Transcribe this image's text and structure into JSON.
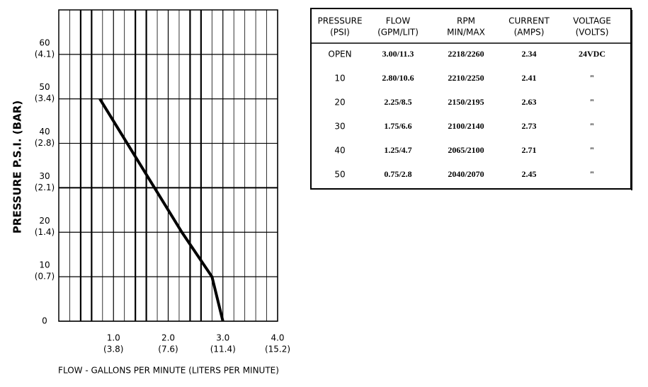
{
  "chart_data": {
    "type": "line",
    "y_label": "PRESSURE  P.S.I.   (BAR)",
    "x_label": "FLOW - GALLONS PER MINUTE  (LITERS PER MINUTE)",
    "series": [
      {
        "name": "Flow",
        "color": "#000000",
        "x": [
          0.75,
          1.25,
          1.75,
          2.25,
          2.8,
          3.0
        ],
        "values": [
          50,
          40,
          30,
          20,
          10,
          0
        ]
      }
    ],
    "xlim": [
      0,
      4
    ],
    "ylim": [
      0,
      70
    ],
    "xticks": [
      {
        "value": 1,
        "label": "1.0",
        "sublabel": "(3.8)"
      },
      {
        "value": 2,
        "label": "2.0",
        "sublabel": "(7.6)"
      },
      {
        "value": 3,
        "label": "3.0",
        "sublabel": "(11.4)"
      },
      {
        "value": 4,
        "label": "4.0",
        "sublabel": "(15.2)"
      }
    ],
    "yticks": [
      {
        "value": 0,
        "label": "0"
      },
      {
        "value": 10,
        "label": "10",
        "sublabel": "(0.7)"
      },
      {
        "value": 20,
        "label": "20",
        "sublabel": "(1.4)"
      },
      {
        "value": 30,
        "label": "30",
        "sublabel": "(2.1)"
      },
      {
        "value": 40,
        "label": "40",
        "sublabel": "(2.8)"
      },
      {
        "value": 50,
        "label": "50",
        "sublabel": "(3.4)"
      },
      {
        "value": 60,
        "label": "60",
        "sublabel": "(4.1)"
      }
    ],
    "x_minor_grid": [
      0.2,
      0.4,
      0.6,
      0.8,
      1.2,
      1.4,
      1.6,
      1.8,
      2.2,
      2.4,
      2.6,
      2.8,
      3.2,
      3.4,
      3.6,
      3.8
    ],
    "x_heavy_grid": [
      0.4,
      0.6,
      1.4,
      1.6,
      2.4,
      2.6
    ],
    "grid": true
  },
  "table": {
    "header": [
      [
        "PRESSURE",
        "(PSI)"
      ],
      [
        "FLOW",
        "(GPM/LIT)"
      ],
      [
        "RPM",
        "MIN/MAX"
      ],
      [
        "CURRENT",
        "(AMPS)"
      ],
      [
        "VOLTAGE",
        "(VOLTS)"
      ]
    ],
    "rows": [
      [
        "OPEN",
        "3.00/11.3",
        "2218/2260",
        "2.34",
        "24VDC"
      ],
      [
        "10",
        "2.80/10.6",
        "2210/2250",
        "2.41",
        "\""
      ],
      [
        "20",
        "2.25/8.5",
        "2150/2195",
        "2.63",
        "\""
      ],
      [
        "30",
        "1.75/6.6",
        "2100/2140",
        "2.73",
        "\""
      ],
      [
        "40",
        "1.25/4.7",
        "2065/2100",
        "2.71",
        "\""
      ],
      [
        "50",
        "0.75/2.8",
        "2040/2070",
        "2.45",
        "\""
      ]
    ]
  }
}
